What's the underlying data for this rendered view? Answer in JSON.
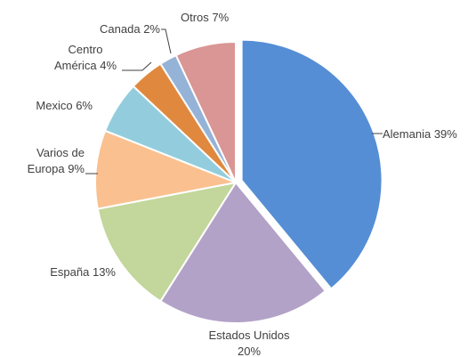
{
  "chart_data": {
    "type": "pie",
    "categories": [
      "Alemania",
      "Estados Unidos",
      "España",
      "Varios de Europa",
      "Mexico",
      "Centro América",
      "Canada",
      "Otros"
    ],
    "values": [
      39,
      20,
      13,
      9,
      6,
      4,
      2,
      7
    ],
    "value_labels": [
      "39%",
      "20%",
      "13%",
      "9%",
      "6%",
      "4%",
      "2%",
      "7%"
    ],
    "colors": [
      "#558ed5",
      "#b3a2c7",
      "#c3d69b",
      "#fac090",
      "#93cddd",
      "#e0893e",
      "#95b3d7",
      "#d99694"
    ]
  }
}
